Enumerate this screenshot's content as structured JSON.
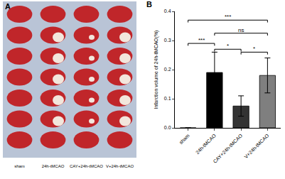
{
  "image_panel": {
    "label": "A",
    "columns": [
      "sham",
      "24h-tMCAO",
      "CAY+24h-tMCAO",
      "V+24h-tMCAO"
    ]
  },
  "chart_data": {
    "type": "bar",
    "title": "B",
    "y_label": "Infarction volume of 24h-tMCAO(%)",
    "categories": [
      "sham",
      "24h-tMCAO",
      "CAY+24h-tMCAO",
      "V+24h-tMCAO"
    ],
    "values": [
      0.0,
      0.19,
      0.075,
      0.18
    ],
    "errors": [
      0.0,
      0.07,
      0.035,
      0.06
    ],
    "colors": [
      "#000000",
      "#000000",
      "#333333",
      "#7f7f7f"
    ],
    "ylim": [
      0,
      0.4
    ],
    "yticks": [
      {
        "value": 0,
        "label": "0.0"
      },
      {
        "value": 0.1,
        "label": "0.1"
      },
      {
        "value": 0.2,
        "label": "0.2"
      },
      {
        "value": 0.3,
        "label": "0.3"
      },
      {
        "value": 0.4,
        "label": "0.4"
      }
    ],
    "grid": false,
    "annotations": [
      {
        "text": "***",
        "from": "sham",
        "to": "24h-tMCAO",
        "y": 0.29
      },
      {
        "text": "*",
        "from": "24h-tMCAO",
        "to": "CAY+24h-tMCAO",
        "y": 0.27
      },
      {
        "text": "ns",
        "from": "24h-tMCAO",
        "to": "V+24h-tMCAO",
        "y": 0.325
      },
      {
        "text": "*",
        "from": "CAY+24h-tMCAO",
        "to": "V+24h-tMCAO",
        "y": 0.26
      },
      {
        "text": "***",
        "from": "sham",
        "to": "V+24h-tMCAO",
        "y": 0.37
      }
    ]
  }
}
